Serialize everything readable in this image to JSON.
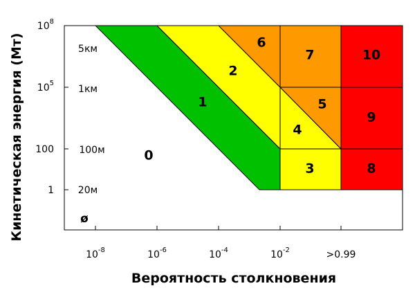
{
  "chart_data": {
    "type": "risk-diagram",
    "y_label": "Кинетическая энергия (Мт)",
    "x_label": "Вероятность столкновения",
    "yticks": [
      {
        "base": "10",
        "exp": "8"
      },
      {
        "base": "10",
        "exp": "5"
      },
      "100",
      "1"
    ],
    "xticks": [
      {
        "base": "10",
        "exp": "-8"
      },
      {
        "base": "10",
        "exp": "-6"
      },
      {
        "base": "10",
        "exp": "-4"
      },
      {
        "base": "10",
        "exp": "-2"
      },
      ">0.99"
    ],
    "sizes": [
      "5км",
      "1км",
      "100м",
      "20м",
      "ø"
    ],
    "regions": [
      "0",
      "1",
      "2",
      "3",
      "4",
      "5",
      "6",
      "7",
      "8",
      "9",
      "10"
    ]
  }
}
